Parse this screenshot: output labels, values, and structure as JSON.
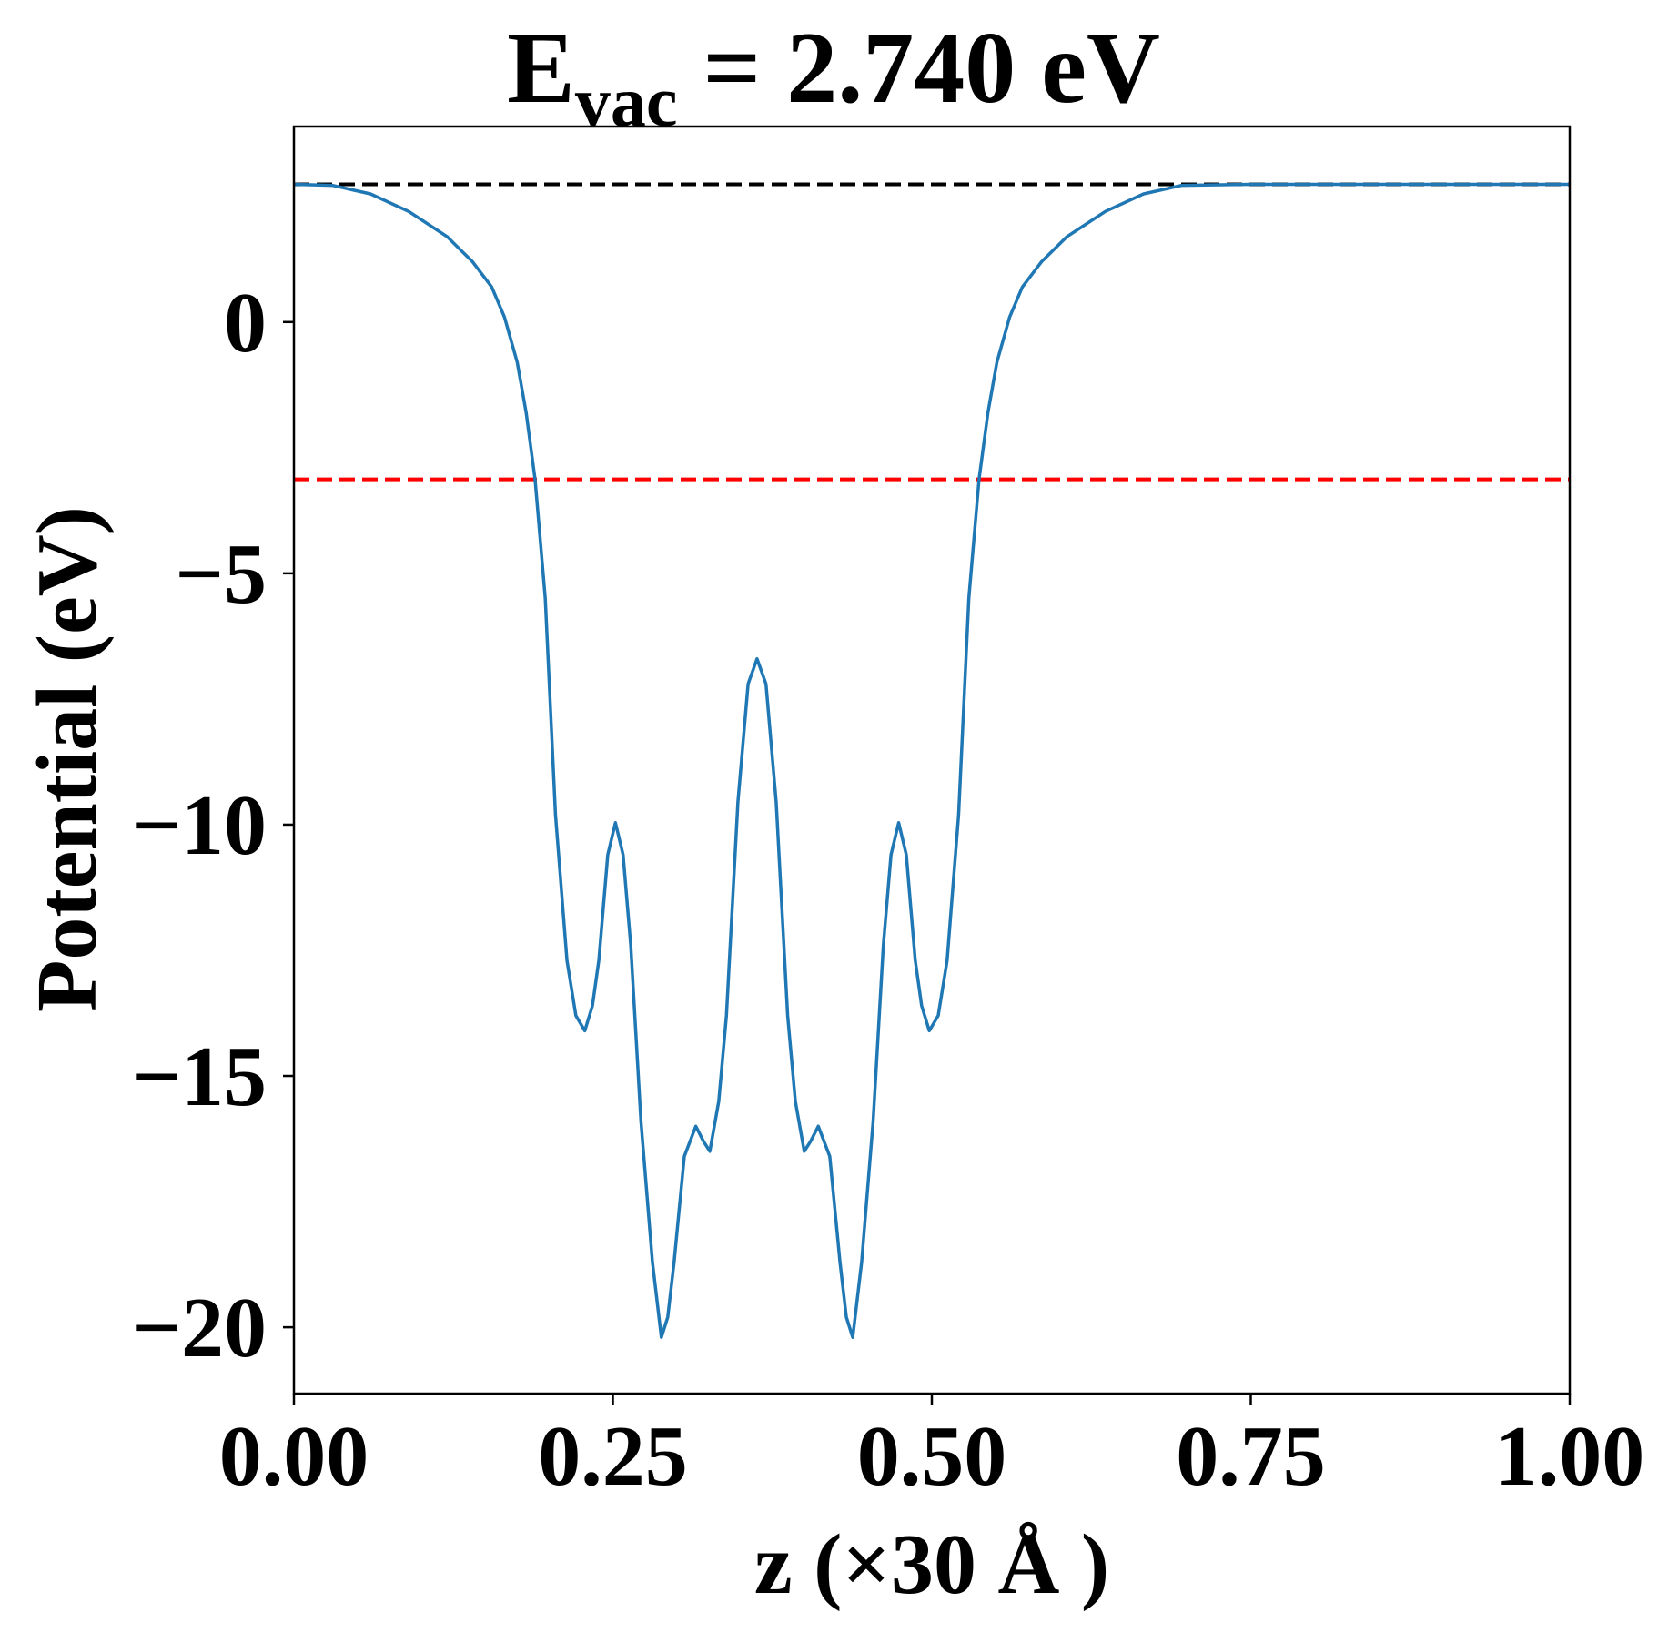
{
  "chart_data": {
    "type": "line",
    "title": {
      "main": "E",
      "sub": "vac",
      "rest": " = 2.740 eV"
    },
    "xlabel": "z (×30 Å )",
    "ylabel": "Potential (eV)",
    "xlim": [
      0,
      1
    ],
    "ylim": [
      -21.32,
      3.89
    ],
    "xticks": [
      {
        "value": 0,
        "label": "0.00"
      },
      {
        "value": 0.25,
        "label": "0.25"
      },
      {
        "value": 0.5,
        "label": "0.50"
      },
      {
        "value": 0.75,
        "label": "0.75"
      },
      {
        "value": 1,
        "label": "1.00"
      }
    ],
    "yticks": [
      {
        "value": -20,
        "label": "−20"
      },
      {
        "value": -15,
        "label": "−15"
      },
      {
        "value": -10,
        "label": "−10"
      },
      {
        "value": -5,
        "label": "−5"
      },
      0
    ],
    "hlines": [
      {
        "y": 2.74,
        "color": "#000000"
      },
      {
        "y": -3.13,
        "color": "#ff0000"
      }
    ],
    "series": [
      {
        "color": "#1f77b4",
        "x": [
          0.0,
          0.03,
          0.06,
          0.09,
          0.12,
          0.14,
          0.155,
          0.165,
          0.175,
          0.182,
          0.189,
          0.197,
          0.205,
          0.214,
          0.221,
          0.228,
          0.234,
          0.239,
          0.246,
          0.252,
          0.258,
          0.264,
          0.272,
          0.281,
          0.288,
          0.293,
          0.298,
          0.306,
          0.315,
          0.321,
          0.326,
          0.333,
          0.339,
          0.348,
          0.356,
          0.363,
          0.37,
          0.378,
          0.387,
          0.393,
          0.4,
          0.405,
          0.411,
          0.42,
          0.428,
          0.433,
          0.438,
          0.445,
          0.454,
          0.462,
          0.468,
          0.474,
          0.48,
          0.487,
          0.492,
          0.498,
          0.505,
          0.512,
          0.521,
          0.529,
          0.537,
          0.544,
          0.551,
          0.561,
          0.571,
          0.586,
          0.606,
          0.636,
          0.666,
          0.696,
          0.75,
          0.85,
          1.0
        ],
        "values": [
          2.74,
          2.72,
          2.55,
          2.2,
          1.7,
          1.2,
          0.7,
          0.1,
          -0.8,
          -1.8,
          -3.13,
          -5.5,
          -9.8,
          -12.7,
          -13.8,
          -14.1,
          -13.6,
          -12.7,
          -10.6,
          -9.96,
          -10.6,
          -12.4,
          -15.9,
          -18.7,
          -20.2,
          -19.8,
          -18.7,
          -16.6,
          -16.0,
          -16.3,
          -16.5,
          -15.5,
          -13.8,
          -9.55,
          -7.2,
          -6.7,
          -7.2,
          -9.55,
          -13.8,
          -15.5,
          -16.5,
          -16.3,
          -16.0,
          -16.6,
          -18.7,
          -19.8,
          -20.2,
          -18.7,
          -15.9,
          -12.4,
          -10.6,
          -9.96,
          -10.6,
          -12.7,
          -13.6,
          -14.1,
          -13.8,
          -12.7,
          -9.8,
          -5.5,
          -3.13,
          -1.8,
          -0.8,
          0.1,
          0.7,
          1.2,
          1.7,
          2.2,
          2.55,
          2.72,
          2.74,
          2.74,
          2.74
        ]
      }
    ]
  }
}
